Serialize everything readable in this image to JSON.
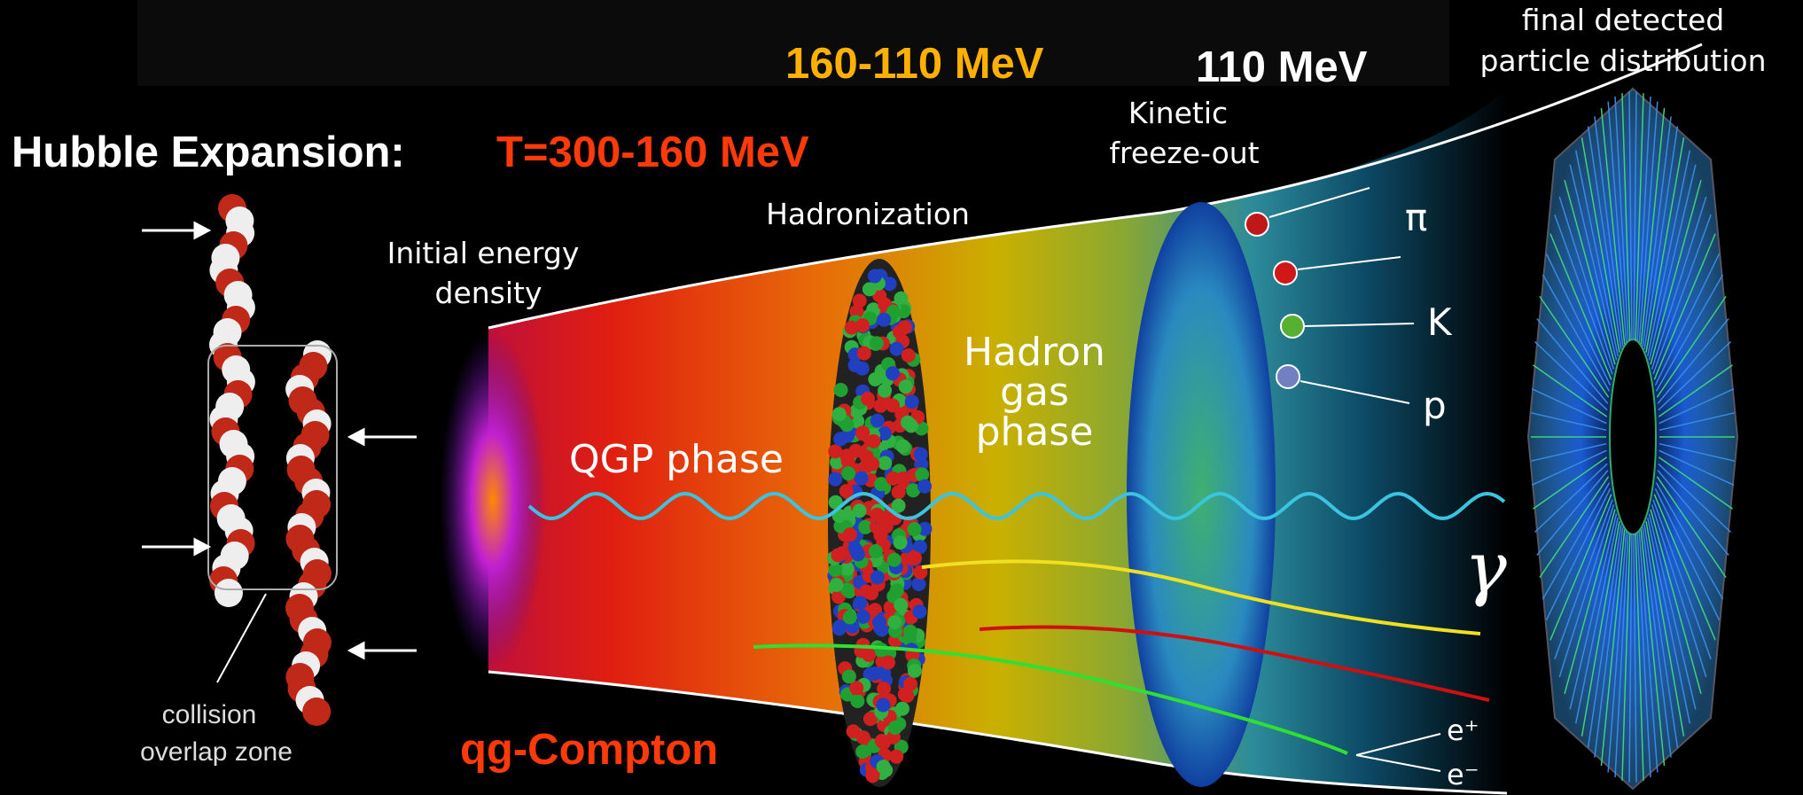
{
  "header": {
    "title": "Hubble Expansion:",
    "qgp_temperature": "T=300-160 MeV",
    "hadronization_temperature": "160-110 MeV",
    "freezeout_temperature": "110 MeV"
  },
  "labels": {
    "final": [
      "final detected",
      "particle distribution"
    ],
    "kinetic": [
      "Kinetic",
      "freeze-out"
    ],
    "hadronization": "Hadronization",
    "initial": [
      "Initial energy",
      "density"
    ],
    "hadron_gas": [
      "Hadron",
      "gas",
      "phase"
    ],
    "qgp": "QGP phase",
    "collision": [
      "collision",
      "overlap zone"
    ],
    "compton": "qg-Compton"
  },
  "particles": {
    "pion": "π",
    "kaon": "K",
    "proton": "p",
    "photon": "γ",
    "positron": "e⁺",
    "electron": "e⁻"
  }
}
